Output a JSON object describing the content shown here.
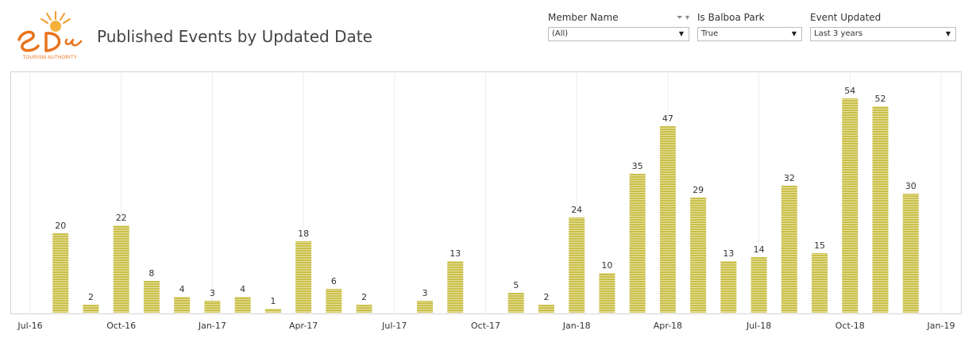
{
  "header": {
    "title": "Published Events by Updated Date",
    "logo_text": "San Diego",
    "logo_subtext": "TOURISM AUTHORITY"
  },
  "filters": [
    {
      "label": "Member Name",
      "value": "(All)"
    },
    {
      "label": "Is Balboa Park",
      "value": "True"
    },
    {
      "label": "Event Updated",
      "value": "Last 3 years"
    }
  ],
  "colors": {
    "bar": "#c9bf4a",
    "bar_stripe": "#e9e2a0",
    "grid": "#ececec",
    "logo": "#e8731c"
  },
  "chart_data": {
    "type": "bar",
    "title": "",
    "xlabel": "",
    "ylabel": "",
    "grid": "vertical",
    "x_ticks": [
      "Jul-16",
      "Oct-16",
      "Jan-17",
      "Apr-17",
      "Jul-17",
      "Oct-17",
      "Jan-18",
      "Apr-18",
      "Jul-18",
      "Oct-18",
      "Jan-19"
    ],
    "x_range": [
      "2016-07",
      "2019-01"
    ],
    "ylim": [
      0,
      56
    ],
    "categories": [
      "2016-08",
      "2016-09",
      "2016-10",
      "2016-11",
      "2016-12",
      "2017-01",
      "2017-02",
      "2017-03",
      "2017-04",
      "2017-05",
      "2017-06",
      "2017-07",
      "2017-08",
      "2017-09",
      "2017-10",
      "2017-11",
      "2017-12",
      "2018-01",
      "2018-02",
      "2018-03",
      "2018-04",
      "2018-05",
      "2018-06",
      "2018-07",
      "2018-08",
      "2018-09",
      "2018-10",
      "2018-11",
      "2018-12"
    ],
    "values": [
      20,
      2,
      22,
      8,
      4,
      3,
      4,
      1,
      18,
      6,
      2,
      null,
      3,
      13,
      null,
      5,
      2,
      24,
      10,
      35,
      47,
      29,
      13,
      14,
      32,
      15,
      54,
      52,
      30
    ],
    "data_labels": [
      "20",
      "2",
      "22",
      "8",
      "4",
      "3",
      "4",
      "1",
      "18",
      "6",
      "2",
      "",
      "3",
      "13",
      "",
      "5",
      "2",
      "24",
      "10",
      "35",
      "47",
      "29",
      "13",
      "14",
      "32",
      "15",
      "54",
      "52",
      "30"
    ]
  }
}
